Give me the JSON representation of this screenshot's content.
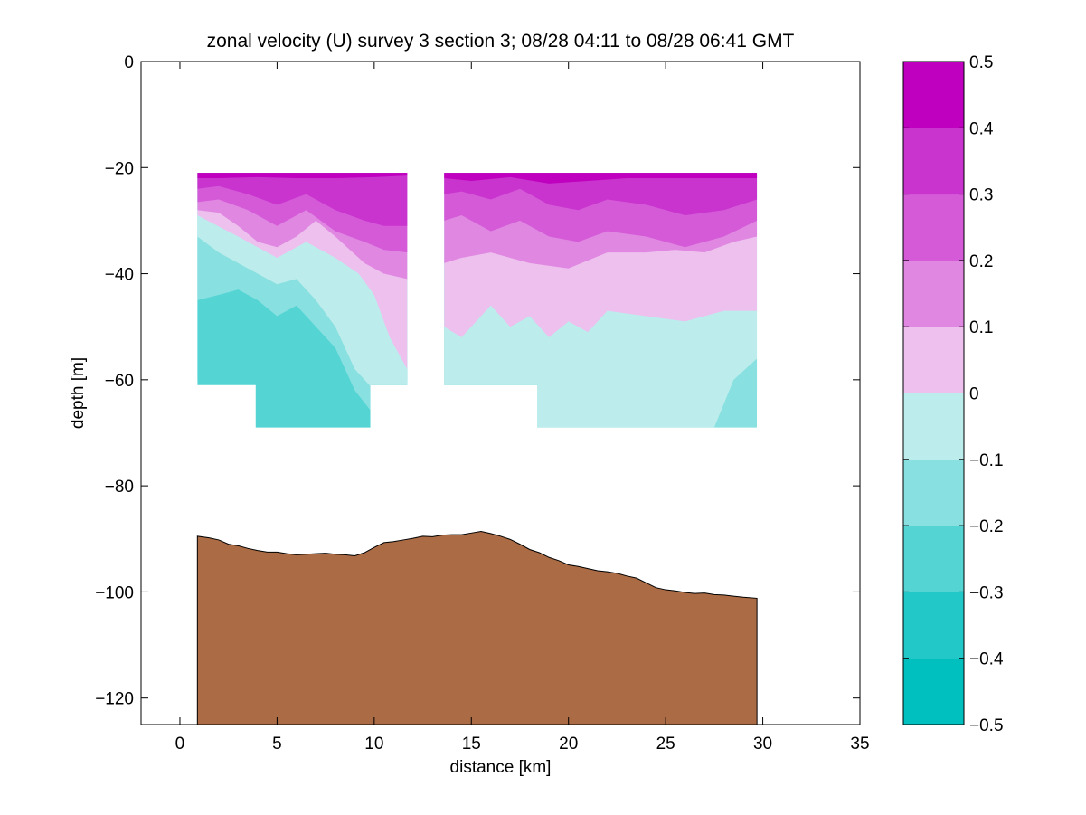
{
  "chart_data": {
    "type": "contour",
    "title": "zonal velocity (U) survey 3 section 3; 08/28 04:11 to 08/28 06:41 GMT",
    "xlabel": "distance [km]",
    "ylabel": "depth [m]",
    "xlim": [
      -2,
      35
    ],
    "ylim": [
      -125,
      0
    ],
    "xticks": [
      0,
      5,
      10,
      15,
      20,
      25,
      30,
      35
    ],
    "yticks": [
      0,
      -20,
      -40,
      -60,
      -80,
      -100,
      -120
    ],
    "colorbar": {
      "levels": [
        -0.5,
        -0.4,
        -0.3,
        -0.2,
        -0.1,
        0,
        0.1,
        0.2,
        0.3,
        0.4,
        0.5
      ],
      "tick_labels": [
        "0.5",
        "0.4",
        "0.3",
        "0.2",
        "0.1",
        "0",
        "−0.1",
        "−0.2",
        "−0.3",
        "−0.4",
        "−0.5"
      ],
      "colors": [
        "#00BFBF",
        "#22C8C8",
        "#55D4D4",
        "#88E0E0",
        "#BDECEC",
        "#EDC0EE",
        "#E087E2",
        "#D45AD8",
        "#C933CE",
        "#BF00BF"
      ]
    },
    "velocity_fields": [
      {
        "x_range": [
          0.9,
          11.7
        ],
        "data_depth_range": [
          -21,
          -61
        ],
        "extension": {
          "x_range": [
            3.9,
            9.8
          ],
          "bottom": -69
        },
        "bands": [
          {
            "value_bin": [
              0.4,
              0.5
            ],
            "bottom_profile": {
              "x": [
                0.9,
                2,
                4,
                6,
                8,
                10,
                11.7
              ],
              "y": [
                -22,
                -22,
                -21.8,
                -22,
                -22,
                -21.8,
                -21.5
              ]
            }
          },
          {
            "value_bin": [
              0.3,
              0.4
            ],
            "bottom_profile": {
              "x": [
                0.9,
                2,
                3.5,
                5,
                6.5,
                8,
                9.5,
                10.5,
                11.7
              ],
              "y": [
                -24,
                -23.5,
                -25,
                -27,
                -25,
                -28,
                -30,
                -31,
                -31
              ]
            }
          },
          {
            "value_bin": [
              0.2,
              0.3
            ],
            "bottom_profile": {
              "x": [
                0.9,
                2,
                3.5,
                5,
                6.5,
                8,
                9.5,
                10.5,
                11.7
              ],
              "y": [
                -26.5,
                -26,
                -28,
                -31,
                -28,
                -32,
                -34,
                -35.5,
                -36
              ]
            }
          },
          {
            "value_bin": [
              0.1,
              0.2
            ],
            "bottom_profile": {
              "x": [
                0.9,
                2,
                3,
                4,
                5,
                6,
                7,
                8,
                9.5,
                10.5,
                11.7
              ],
              "y": [
                -28,
                -28.5,
                -31,
                -34,
                -35,
                -33,
                -30,
                -33,
                -38,
                -40,
                -41
              ]
            }
          },
          {
            "value_bin": [
              0,
              0.1
            ],
            "bottom_profile": {
              "x": [
                0.9,
                3,
                5,
                6.5,
                8,
                9.2,
                10,
                10.8,
                11.7
              ],
              "y": [
                -29,
                -33,
                -37,
                -34,
                -37,
                -40,
                -44,
                -52,
                -58
              ]
            }
          },
          {
            "value_bin": [
              -0.1,
              0
            ],
            "bottom_profile": {
              "x": [
                0.9,
                2,
                3,
                4,
                5,
                6,
                7,
                8,
                9,
                10.5,
                11.7
              ],
              "y": [
                -33,
                -36,
                -38,
                -40,
                -42,
                -41,
                -45,
                -50,
                -58,
                -64,
                -69
              ]
            }
          },
          {
            "value_bin": [
              -0.2,
              -0.1
            ],
            "bottom_profile": {
              "x": [
                0.9,
                2,
                3,
                4,
                5,
                6,
                7,
                8,
                9,
                10.5,
                11.7
              ],
              "y": [
                -45,
                -44,
                -43,
                -45,
                -48,
                -46,
                -50,
                -54,
                -62,
                -69,
                -69
              ]
            }
          },
          {
            "value_bin": [
              -0.3,
              -0.2
            ],
            "bottom_profile": {
              "x": [
                0.9,
                2,
                3,
                4,
                5,
                6,
                7,
                8,
                9,
                10.5,
                11.7
              ],
              "y": [
                -60,
                -60,
                -60,
                -60,
                -60,
                -60,
                -60,
                -60,
                -60,
                -60,
                -60
              ]
            }
          }
        ]
      },
      {
        "x_range": [
          13.6,
          29.7
        ],
        "data_depth_range": [
          -21,
          -61
        ],
        "extension": {
          "x_range": [
            18.4,
            29.7
          ],
          "bottom": -69
        },
        "bands": [
          {
            "value_bin": [
              0.4,
              0.5
            ],
            "bottom_profile": {
              "x": [
                13.6,
                15,
                17,
                19,
                21,
                23,
                25,
                27,
                29.7
              ],
              "y": [
                -22,
                -22.5,
                -21.8,
                -23,
                -22.5,
                -22,
                -22,
                -22,
                -22
              ]
            }
          },
          {
            "value_bin": [
              0.3,
              0.4
            ],
            "bottom_profile": {
              "x": [
                13.6,
                14.5,
                16,
                17.5,
                19,
                20.5,
                22,
                24,
                26,
                28,
                29.7
              ],
              "y": [
                -25,
                -24.5,
                -26,
                -24,
                -27,
                -28,
                -26,
                -27,
                -29,
                -28,
                -26
              ]
            }
          },
          {
            "value_bin": [
              0.2,
              0.3
            ],
            "bottom_profile": {
              "x": [
                13.6,
                14.5,
                16,
                17.5,
                19,
                20.5,
                22,
                24,
                26,
                28,
                29.7
              ],
              "y": [
                -30,
                -29,
                -32,
                -30,
                -33,
                -34,
                -32,
                -33,
                -35,
                -33,
                -30
              ]
            }
          },
          {
            "value_bin": [
              0.1,
              0.2
            ],
            "bottom_profile": {
              "x": [
                13.6,
                14.5,
                16,
                18,
                20,
                22,
                24,
                25.5,
                27,
                28.5,
                29.7
              ],
              "y": [
                -38,
                -37,
                -36,
                -38,
                -39,
                -36,
                -36,
                -35.5,
                -36,
                -34,
                -33
              ]
            }
          },
          {
            "value_bin": [
              0,
              0.1
            ],
            "bottom_profile": {
              "x": [
                13.6,
                14.5,
                16,
                17,
                18,
                19,
                20,
                21,
                22,
                24,
                26,
                28,
                29.7
              ],
              "y": [
                -50,
                -52,
                -46,
                -50,
                -48,
                -52,
                -49,
                -51,
                -47,
                -48,
                -49,
                -47,
                -47
              ]
            }
          },
          {
            "value_bin": [
              -0.1,
              0
            ],
            "bottom_profile": {
              "x": [
                13.6,
                15,
                17,
                19,
                21,
                23,
                25,
                26.5,
                27.5,
                28.5,
                29.7
              ],
              "y": [
                -69,
                -69,
                -69,
                -69,
                -69,
                -69,
                -69,
                -69,
                -69,
                -60,
                -56
              ]
            }
          },
          {
            "value_bin": [
              -0.2,
              -0.1
            ],
            "bottom_profile": {
              "x": [
                13.6,
                15,
                17,
                19,
                21,
                23,
                25,
                26.5,
                27.5,
                28.5,
                29.7
              ],
              "y": [
                -69,
                -69,
                -69,
                -69,
                -69,
                -69,
                -69,
                -69,
                -69,
                -66,
                -62
              ]
            }
          }
        ]
      }
    ],
    "bathymetry": {
      "fill_color": "#AA6B45",
      "x": [
        0.9,
        1.5,
        2,
        2.5,
        3,
        3.5,
        4,
        4.5,
        5,
        5.5,
        6,
        6.5,
        7,
        7.5,
        8,
        8.5,
        9,
        9.5,
        10,
        10.5,
        11,
        11.5,
        12,
        12.5,
        13,
        13.5,
        14,
        14.5,
        15,
        15.5,
        16,
        16.5,
        17,
        17.5,
        18,
        18.5,
        19,
        19.5,
        20,
        20.5,
        21,
        21.5,
        22,
        22.5,
        23,
        23.5,
        24,
        24.5,
        25,
        25.5,
        26,
        26.5,
        27,
        27.5,
        28,
        28.5,
        29,
        29.7
      ],
      "y": [
        -89.5,
        -89.8,
        -90.2,
        -91,
        -91.3,
        -91.8,
        -92.2,
        -92.5,
        -92.5,
        -92.8,
        -93,
        -92.9,
        -92.8,
        -92.7,
        -92.9,
        -93,
        -93.2,
        -92.6,
        -91.6,
        -90.7,
        -90.5,
        -90.2,
        -89.9,
        -89.5,
        -89.6,
        -89.3,
        -89.2,
        -89.2,
        -88.9,
        -88.6,
        -89,
        -89.5,
        -90.1,
        -91,
        -92,
        -92.6,
        -93.5,
        -94.1,
        -94.9,
        -95.2,
        -95.6,
        -96,
        -96.2,
        -96.5,
        -97,
        -97.4,
        -98.3,
        -99.2,
        -99.6,
        -99.8,
        -100.1,
        -100.3,
        -100.2,
        -100.5,
        -100.6,
        -100.8,
        -101,
        -101.2
      ]
    }
  }
}
